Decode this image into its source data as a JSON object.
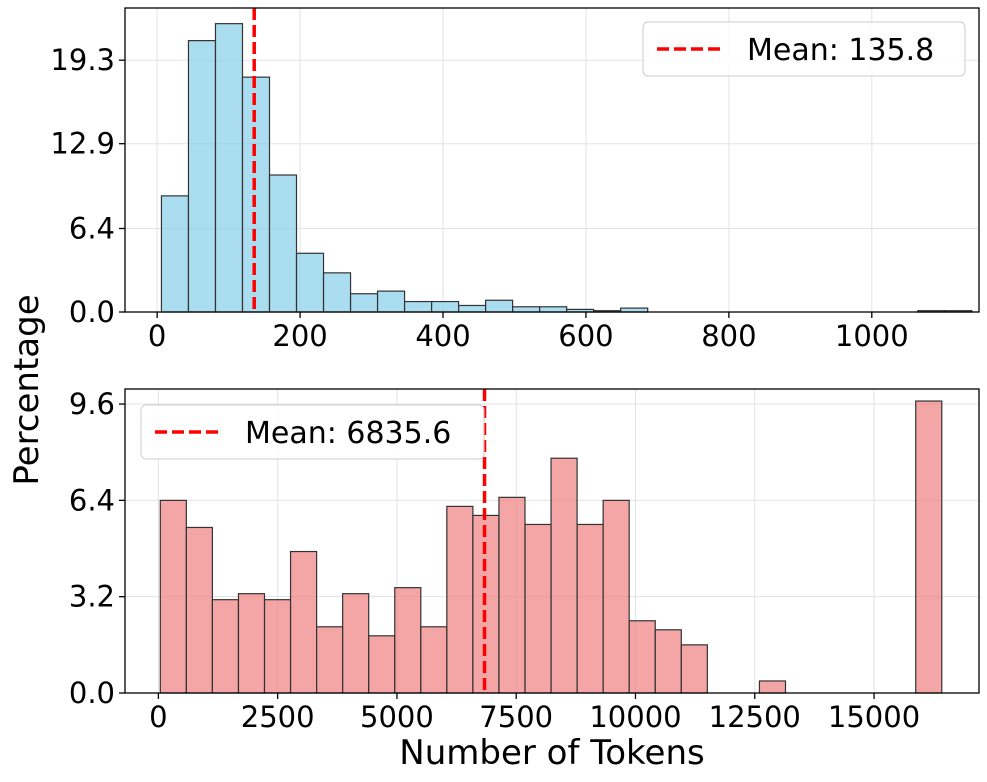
{
  "chart_data": [
    {
      "type": "bar",
      "subtype": "histogram",
      "title": "",
      "xlabel": "",
      "ylabel": "Percentage",
      "xlim": [
        -45,
        1150
      ],
      "ylim": [
        0,
        23.3
      ],
      "xticks": [
        0,
        200,
        400,
        600,
        800,
        1000
      ],
      "xtick_labels": [
        "0",
        "200",
        "400",
        "600",
        "800",
        "1000"
      ],
      "yticks": [
        0,
        6.4,
        12.9,
        19.3
      ],
      "ytick_labels": [
        "0.0",
        "6.4",
        "12.9",
        "19.3"
      ],
      "grid": true,
      "bin_width": 37.8,
      "bin_start": 6,
      "values": [
        8.9,
        20.8,
        22.1,
        18.0,
        10.5,
        4.5,
        3.0,
        1.4,
        1.6,
        0.8,
        0.8,
        0.5,
        0.9,
        0.4,
        0.4,
        0.2,
        0.1,
        0.3,
        0,
        0,
        0,
        0,
        0,
        0,
        0,
        0,
        0,
        0,
        0.1,
        0.1
      ],
      "series_color": "#87CEEB",
      "mean": 135.8,
      "mean_color": "#ff0000",
      "legend": {
        "label": "Mean: 135.8",
        "placement": "top-right"
      }
    },
    {
      "type": "bar",
      "subtype": "histogram",
      "title": "",
      "xlabel": "Number of Tokens",
      "ylabel": "Percentage",
      "xlim": [
        -700,
        17200
      ],
      "ylim": [
        0,
        10.1
      ],
      "xticks": [
        0,
        2500,
        5000,
        7500,
        10000,
        12500,
        15000
      ],
      "xtick_labels": [
        "0",
        "2500",
        "5000",
        "7500",
        "10000",
        "12500",
        "15000"
      ],
      "yticks": [
        0,
        3.2,
        6.4,
        9.6
      ],
      "ytick_labels": [
        "0.0",
        "3.2",
        "6.4",
        "9.6"
      ],
      "grid": true,
      "bin_width": 546,
      "bin_start": 40,
      "values": [
        6.4,
        5.5,
        3.1,
        3.3,
        3.1,
        4.7,
        2.2,
        3.3,
        1.9,
        3.5,
        2.2,
        6.2,
        5.9,
        6.5,
        5.6,
        7.8,
        5.6,
        6.4,
        2.4,
        2.1,
        1.6,
        0,
        0,
        0.4,
        0,
        0,
        0,
        0,
        0,
        9.7
      ],
      "series_color": "#F08080",
      "mean": 6835.6,
      "mean_color": "#ff0000",
      "legend": {
        "label": "Mean: 6835.6",
        "placement": "top-left"
      }
    }
  ]
}
